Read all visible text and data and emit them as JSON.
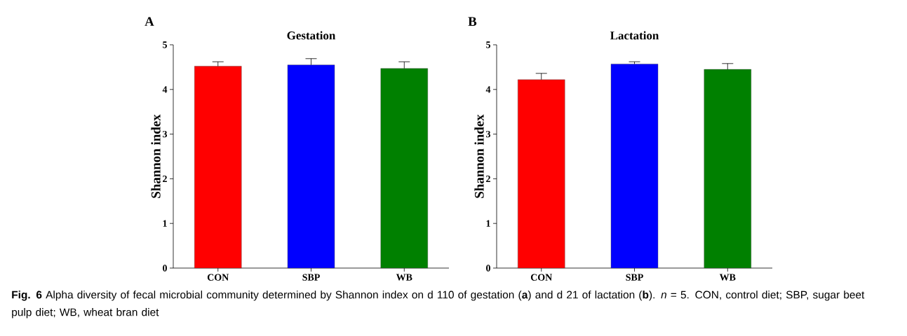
{
  "chart_data": [
    {
      "type": "bar",
      "title": "Gestation",
      "ylabel": "Shannon index",
      "categories": [
        "CON",
        "SBP",
        "WB"
      ],
      "values": [
        4.52,
        4.55,
        4.47
      ],
      "errors": [
        0.1,
        0.14,
        0.15
      ],
      "colors": [
        "#ff0000",
        "#0000ff",
        "#008000"
      ],
      "ylim": [
        0,
        5
      ],
      "yticks": [
        0,
        1,
        2,
        3,
        4,
        5
      ],
      "annotations": [
        "A",
        "**Fig. 6** Alpha diversity of fecal microbial community determined by Shannon index on d 110 of gestation (**a**) and d 21 of lactation (**b**). *n* = 5. CON, control diet; SBP, sugar beet pulp diet; WB, wheat bran diet"
      ]
    },
    {
      "type": "bar",
      "title": "Lactation",
      "ylabel": "Shannon index",
      "categories": [
        "CON",
        "SBP",
        "WB"
      ],
      "values": [
        4.22,
        4.57,
        4.45
      ],
      "errors": [
        0.14,
        0.05,
        0.13
      ],
      "colors": [
        "#ff0000",
        "#0000ff",
        "#008000"
      ],
      "ylim": [
        0,
        5
      ],
      "yticks": [
        0,
        1,
        2,
        3,
        4,
        5
      ],
      "annotations": [
        "B"
      ]
    }
  ]
}
